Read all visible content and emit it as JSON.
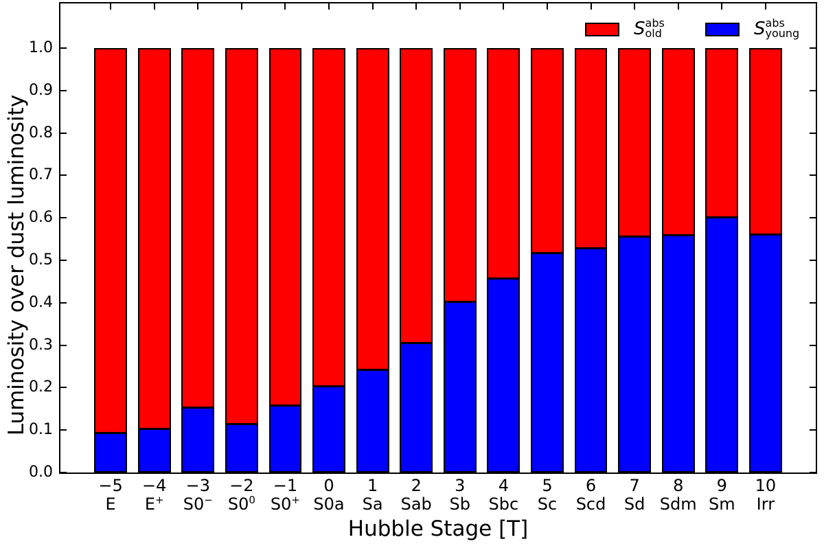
{
  "chart_data": {
    "type": "bar",
    "stacked": true,
    "title": "",
    "xlabel": "Hubble Stage [T]",
    "ylabel": "Luminosity over dust luminosity",
    "ylim": [
      0,
      1.105
    ],
    "xlim_t": [
      -6.15,
      11.15
    ],
    "bar_width_t": 0.752,
    "grid": false,
    "legend_position": "upper right inside, frameless, horizontal",
    "yticks": [
      "0.0",
      "0.1",
      "0.2",
      "0.3",
      "0.4",
      "0.5",
      "0.6",
      "0.7",
      "0.8",
      "0.9",
      "1.0"
    ],
    "categories": [
      {
        "t": "−5",
        "name": "E",
        "sup": ""
      },
      {
        "t": "−4",
        "name": "E",
        "sup": "+"
      },
      {
        "t": "−3",
        "name": "S0",
        "sup": "−"
      },
      {
        "t": "−2",
        "name": "S0",
        "sup": "0"
      },
      {
        "t": "−1",
        "name": "S0",
        "sup": "+"
      },
      {
        "t": "0",
        "name": "S0a",
        "sup": ""
      },
      {
        "t": "1",
        "name": "Sa",
        "sup": ""
      },
      {
        "t": "2",
        "name": "Sab",
        "sup": ""
      },
      {
        "t": "3",
        "name": "Sb",
        "sup": ""
      },
      {
        "t": "4",
        "name": "Sbc",
        "sup": ""
      },
      {
        "t": "5",
        "name": "Sc",
        "sup": ""
      },
      {
        "t": "6",
        "name": "Scd",
        "sup": ""
      },
      {
        "t": "7",
        "name": "Sd",
        "sup": ""
      },
      {
        "t": "8",
        "name": "Sdm",
        "sup": ""
      },
      {
        "t": "9",
        "name": "Sm",
        "sup": ""
      },
      {
        "t": "10",
        "name": "Irr",
        "sup": ""
      }
    ],
    "series": [
      {
        "name": "S_old^abs",
        "label": {
          "base": "S",
          "sup": "abs",
          "sub": "old"
        },
        "color": "#ff0000",
        "values": [
          0.905,
          0.895,
          0.845,
          0.884,
          0.839,
          0.795,
          0.755,
          0.693,
          0.595,
          0.54,
          0.48,
          0.469,
          0.442,
          0.439,
          0.397,
          0.437
        ]
      },
      {
        "name": "S_young^abs",
        "label": {
          "base": "S",
          "sup": "abs",
          "sub": "young"
        },
        "color": "#0000ff",
        "values": [
          0.095,
          0.105,
          0.155,
          0.116,
          0.161,
          0.205,
          0.245,
          0.307,
          0.405,
          0.46,
          0.52,
          0.531,
          0.558,
          0.561,
          0.603,
          0.563
        ]
      }
    ]
  },
  "colors": {
    "old": "#ff0000",
    "young": "#0000ff",
    "edge": "#000000",
    "background": "#ffffff"
  }
}
